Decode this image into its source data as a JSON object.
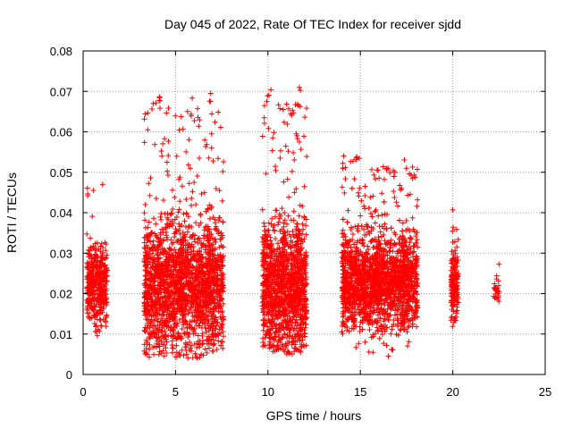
{
  "chart_data": {
    "type": "scatter",
    "title": "Day 045 of 2022, Rate Of TEC Index for receiver sjdd",
    "xlabel": "GPS time / hours",
    "ylabel": "ROTI / TECUs",
    "xlim": [
      0,
      25
    ],
    "ylim": [
      0,
      0.08
    ],
    "x_ticks": [
      0,
      5,
      10,
      15,
      20,
      25
    ],
    "x_tick_labels": [
      "0",
      "5",
      "10",
      "15",
      "20",
      "25"
    ],
    "y_ticks": [
      0,
      0.01,
      0.02,
      0.03,
      0.04,
      0.05,
      0.06,
      0.07,
      0.08
    ],
    "y_tick_labels": [
      "0",
      "0.01",
      "0.02",
      "0.03",
      "0.04",
      "0.05",
      "0.06",
      "0.07",
      "0.08"
    ],
    "grid": true,
    "marker": "+",
    "color": "#ff0000",
    "clusters": [
      {
        "x_range": [
          0.2,
          1.3
        ],
        "y_min": 0.007,
        "y_max": 0.047,
        "y_center": 0.022,
        "density": 420
      },
      {
        "x_range": [
          3.3,
          7.6
        ],
        "y_min": 0.004,
        "y_max": 0.069,
        "y_center": 0.022,
        "density": 2000
      },
      {
        "x_range": [
          9.7,
          12.1
        ],
        "y_min": 0.005,
        "y_max": 0.071,
        "y_center": 0.022,
        "density": 1300
      },
      {
        "x_range": [
          14.0,
          18.1
        ],
        "y_min": 0.004,
        "y_max": 0.054,
        "y_center": 0.023,
        "density": 2000
      },
      {
        "x_range": [
          19.9,
          20.3
        ],
        "y_min": 0.008,
        "y_max": 0.041,
        "y_center": 0.022,
        "density": 160
      },
      {
        "x_range": [
          22.2,
          22.5
        ],
        "y_min": 0.015,
        "y_max": 0.028,
        "y_center": 0.021,
        "density": 30
      }
    ],
    "outliers": [
      {
        "x": 6.9,
        "y": 0.0695
      },
      {
        "x": 6.9,
        "y": 0.0675
      },
      {
        "x": 6.95,
        "y": 0.0595
      },
      {
        "x": 6.95,
        "y": 0.056
      },
      {
        "x": 11.7,
        "y": 0.071
      },
      {
        "x": 11.6,
        "y": 0.0668
      },
      {
        "x": 11.65,
        "y": 0.0665
      },
      {
        "x": 11.7,
        "y": 0.0575
      },
      {
        "x": 11.1,
        "y": 0.0552
      },
      {
        "x": 5.8,
        "y": 0.051
      },
      {
        "x": 6.8,
        "y": 0.0535
      },
      {
        "x": 16.5,
        "y": 0.051
      },
      {
        "x": 14.1,
        "y": 0.054
      },
      {
        "x": 0.55,
        "y": 0.0455
      },
      {
        "x": 1.05,
        "y": 0.047
      }
    ]
  }
}
